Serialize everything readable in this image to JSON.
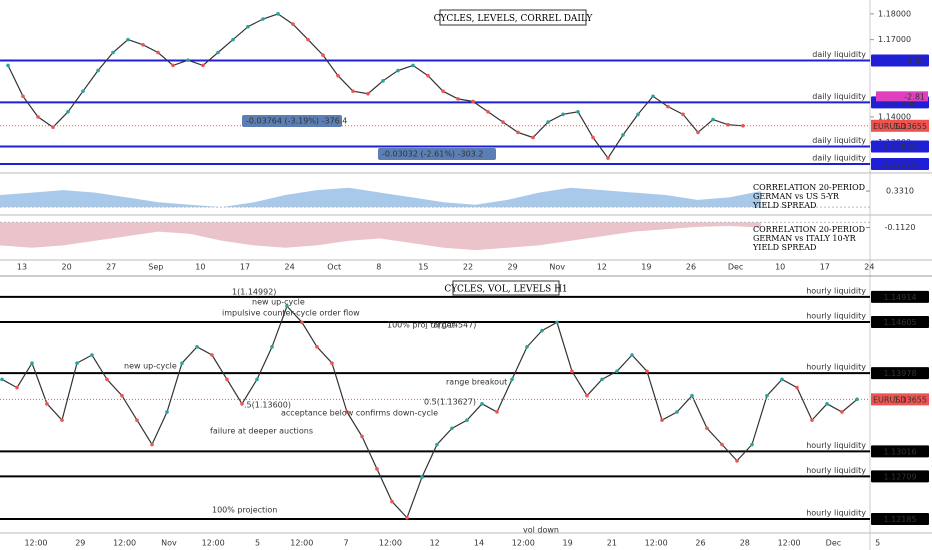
{
  "chart_data": [
    {
      "type": "line",
      "title": "CYCLES, LEVELS, CORREL DAILY",
      "x_labels": [
        "13",
        "20",
        "27",
        "Sep",
        "10",
        "17",
        "24",
        "Oct",
        "8",
        "15",
        "22",
        "29",
        "Nov",
        "12",
        "19",
        "26",
        "Dec",
        "10",
        "17",
        "24"
      ],
      "values": [
        1.16,
        1.148,
        1.14,
        1.136,
        1.142,
        1.15,
        1.158,
        1.165,
        1.17,
        1.168,
        1.165,
        1.16,
        1.162,
        1.16,
        1.165,
        1.17,
        1.175,
        1.178,
        1.18,
        1.176,
        1.17,
        1.164,
        1.156,
        1.15,
        1.149,
        1.154,
        1.158,
        1.16,
        1.156,
        1.15,
        1.147,
        1.146,
        1.142,
        1.138,
        1.134,
        1.132,
        1.138,
        1.141,
        1.142,
        1.132,
        1.124,
        1.133,
        1.141,
        1.148,
        1.144,
        1.141,
        1.134,
        1.139,
        1.137,
        1.13655
      ],
      "color": "#333333",
      "ylim": [
        1.1194,
        1.1846
      ],
      "yticks": [
        {
          "value": 1.18,
          "label": "1.18000"
        },
        {
          "value": 1.17,
          "label": "1.17000"
        },
        {
          "value": 1.14,
          "label": "1.14000"
        },
        {
          "value": 1.13,
          "label": "1.13000"
        }
      ],
      "level_color": "#1f1fd6",
      "levels": [
        {
          "value": 1.16188,
          "label": "daily liquidity"
        },
        {
          "value": 1.14566,
          "label": "daily liquidity"
        },
        {
          "value": 1.12853,
          "label": "daily liquidity"
        },
        {
          "value": 1.12174,
          "label": "daily liquidity"
        }
      ],
      "last": {
        "name": "EURUSD",
        "value": 1.13655
      },
      "indicator_tags": [
        {
          "value": -3.04,
          "color": "#1f1fd6"
        },
        {
          "value": -2.81,
          "color": "#e040c0"
        }
      ],
      "annotations": [
        "-0.03764 (-3.19%) -376.4",
        "-0.03032 (-2.61%) -303.2"
      ]
    },
    {
      "type": "area",
      "title": "CORRELATION 20-PERIOD GERMAN vs US 5-YR YIELD SPREAD",
      "values": [
        0.25,
        0.3,
        0.35,
        0.3,
        0.2,
        0.1,
        0.05,
        0.0,
        0.1,
        0.25,
        0.35,
        0.4,
        0.3,
        0.2,
        0.1,
        0.05,
        0.15,
        0.3,
        0.4,
        0.35,
        0.3,
        0.25,
        0.15,
        0.2,
        0.331
      ],
      "color": "#a9c9ea",
      "ylim": [
        -0.1,
        0.6
      ],
      "value_label": {
        "value": 0.331,
        "label": "0.3310"
      }
    },
    {
      "type": "area",
      "title": "CORRELATION 20-PERIOD GERMAN vs ITALY 10-YR YIELD SPREAD",
      "values": [
        -0.5,
        -0.55,
        -0.5,
        -0.4,
        -0.3,
        -0.2,
        -0.25,
        -0.4,
        -0.5,
        -0.55,
        -0.5,
        -0.4,
        -0.35,
        -0.45,
        -0.55,
        -0.6,
        -0.55,
        -0.5,
        -0.4,
        -0.3,
        -0.2,
        -0.15,
        -0.1,
        -0.08,
        -0.112
      ],
      "color": "#ebc4cb",
      "ylim": [
        -0.75,
        0.05
      ],
      "value_label": {
        "value": -0.112,
        "label": "-0.1120"
      }
    },
    {
      "type": "line",
      "title": "CYCLES, VOL, LEVELS H1",
      "x_labels": [
        "12:00",
        "29",
        "12:00",
        "Nov",
        "12:00",
        "5",
        "12:00",
        "7",
        "12:00",
        "12",
        "14",
        "12:00",
        "19",
        "21",
        "12:00",
        "26",
        "28",
        "12:00",
        "Dec",
        "5"
      ],
      "values": [
        1.139,
        1.138,
        1.141,
        1.136,
        1.134,
        1.141,
        1.142,
        1.139,
        1.137,
        1.134,
        1.131,
        1.135,
        1.141,
        1.143,
        1.142,
        1.139,
        1.136,
        1.139,
        1.143,
        1.148,
        1.146,
        1.143,
        1.141,
        1.135,
        1.132,
        1.128,
        1.124,
        1.122,
        1.127,
        1.131,
        1.133,
        1.134,
        1.136,
        1.135,
        1.139,
        1.143,
        1.145,
        1.146,
        1.14,
        1.137,
        1.139,
        1.14,
        1.142,
        1.14,
        1.134,
        1.135,
        1.137,
        1.133,
        1.131,
        1.129,
        1.131,
        1.137,
        1.139,
        1.138,
        1.134,
        1.136,
        1.135,
        1.13655
      ],
      "color": "#333333",
      "ylim": [
        1.1205,
        1.1506
      ],
      "level_color": "#000000",
      "levels": [
        {
          "value": 1.14914,
          "label": "hourly liquidity"
        },
        {
          "value": 1.14605,
          "label": "hourly liquidity"
        },
        {
          "value": 1.13978,
          "label": "hourly liquidity"
        },
        {
          "value": 1.13016,
          "label": "hourly liquidity"
        },
        {
          "value": 1.12709,
          "label": "hourly liquidity"
        },
        {
          "value": 1.12185,
          "label": "hourly liquidity"
        }
      ],
      "last": {
        "name": "EURUSD",
        "value": 1.13655
      },
      "annotations": [
        "1(1.14992)",
        "impulsive counter-cycle order flow",
        "new up-cycle",
        "new up-cycle",
        ".5(1.13600)",
        "failure at deeper auctions",
        "acceptance below confirms down-cycle",
        "100% proj target",
        "1(1.14547)",
        "range breakout",
        "0.5(1.13627)",
        "100% projection",
        "vol down"
      ]
    }
  ]
}
